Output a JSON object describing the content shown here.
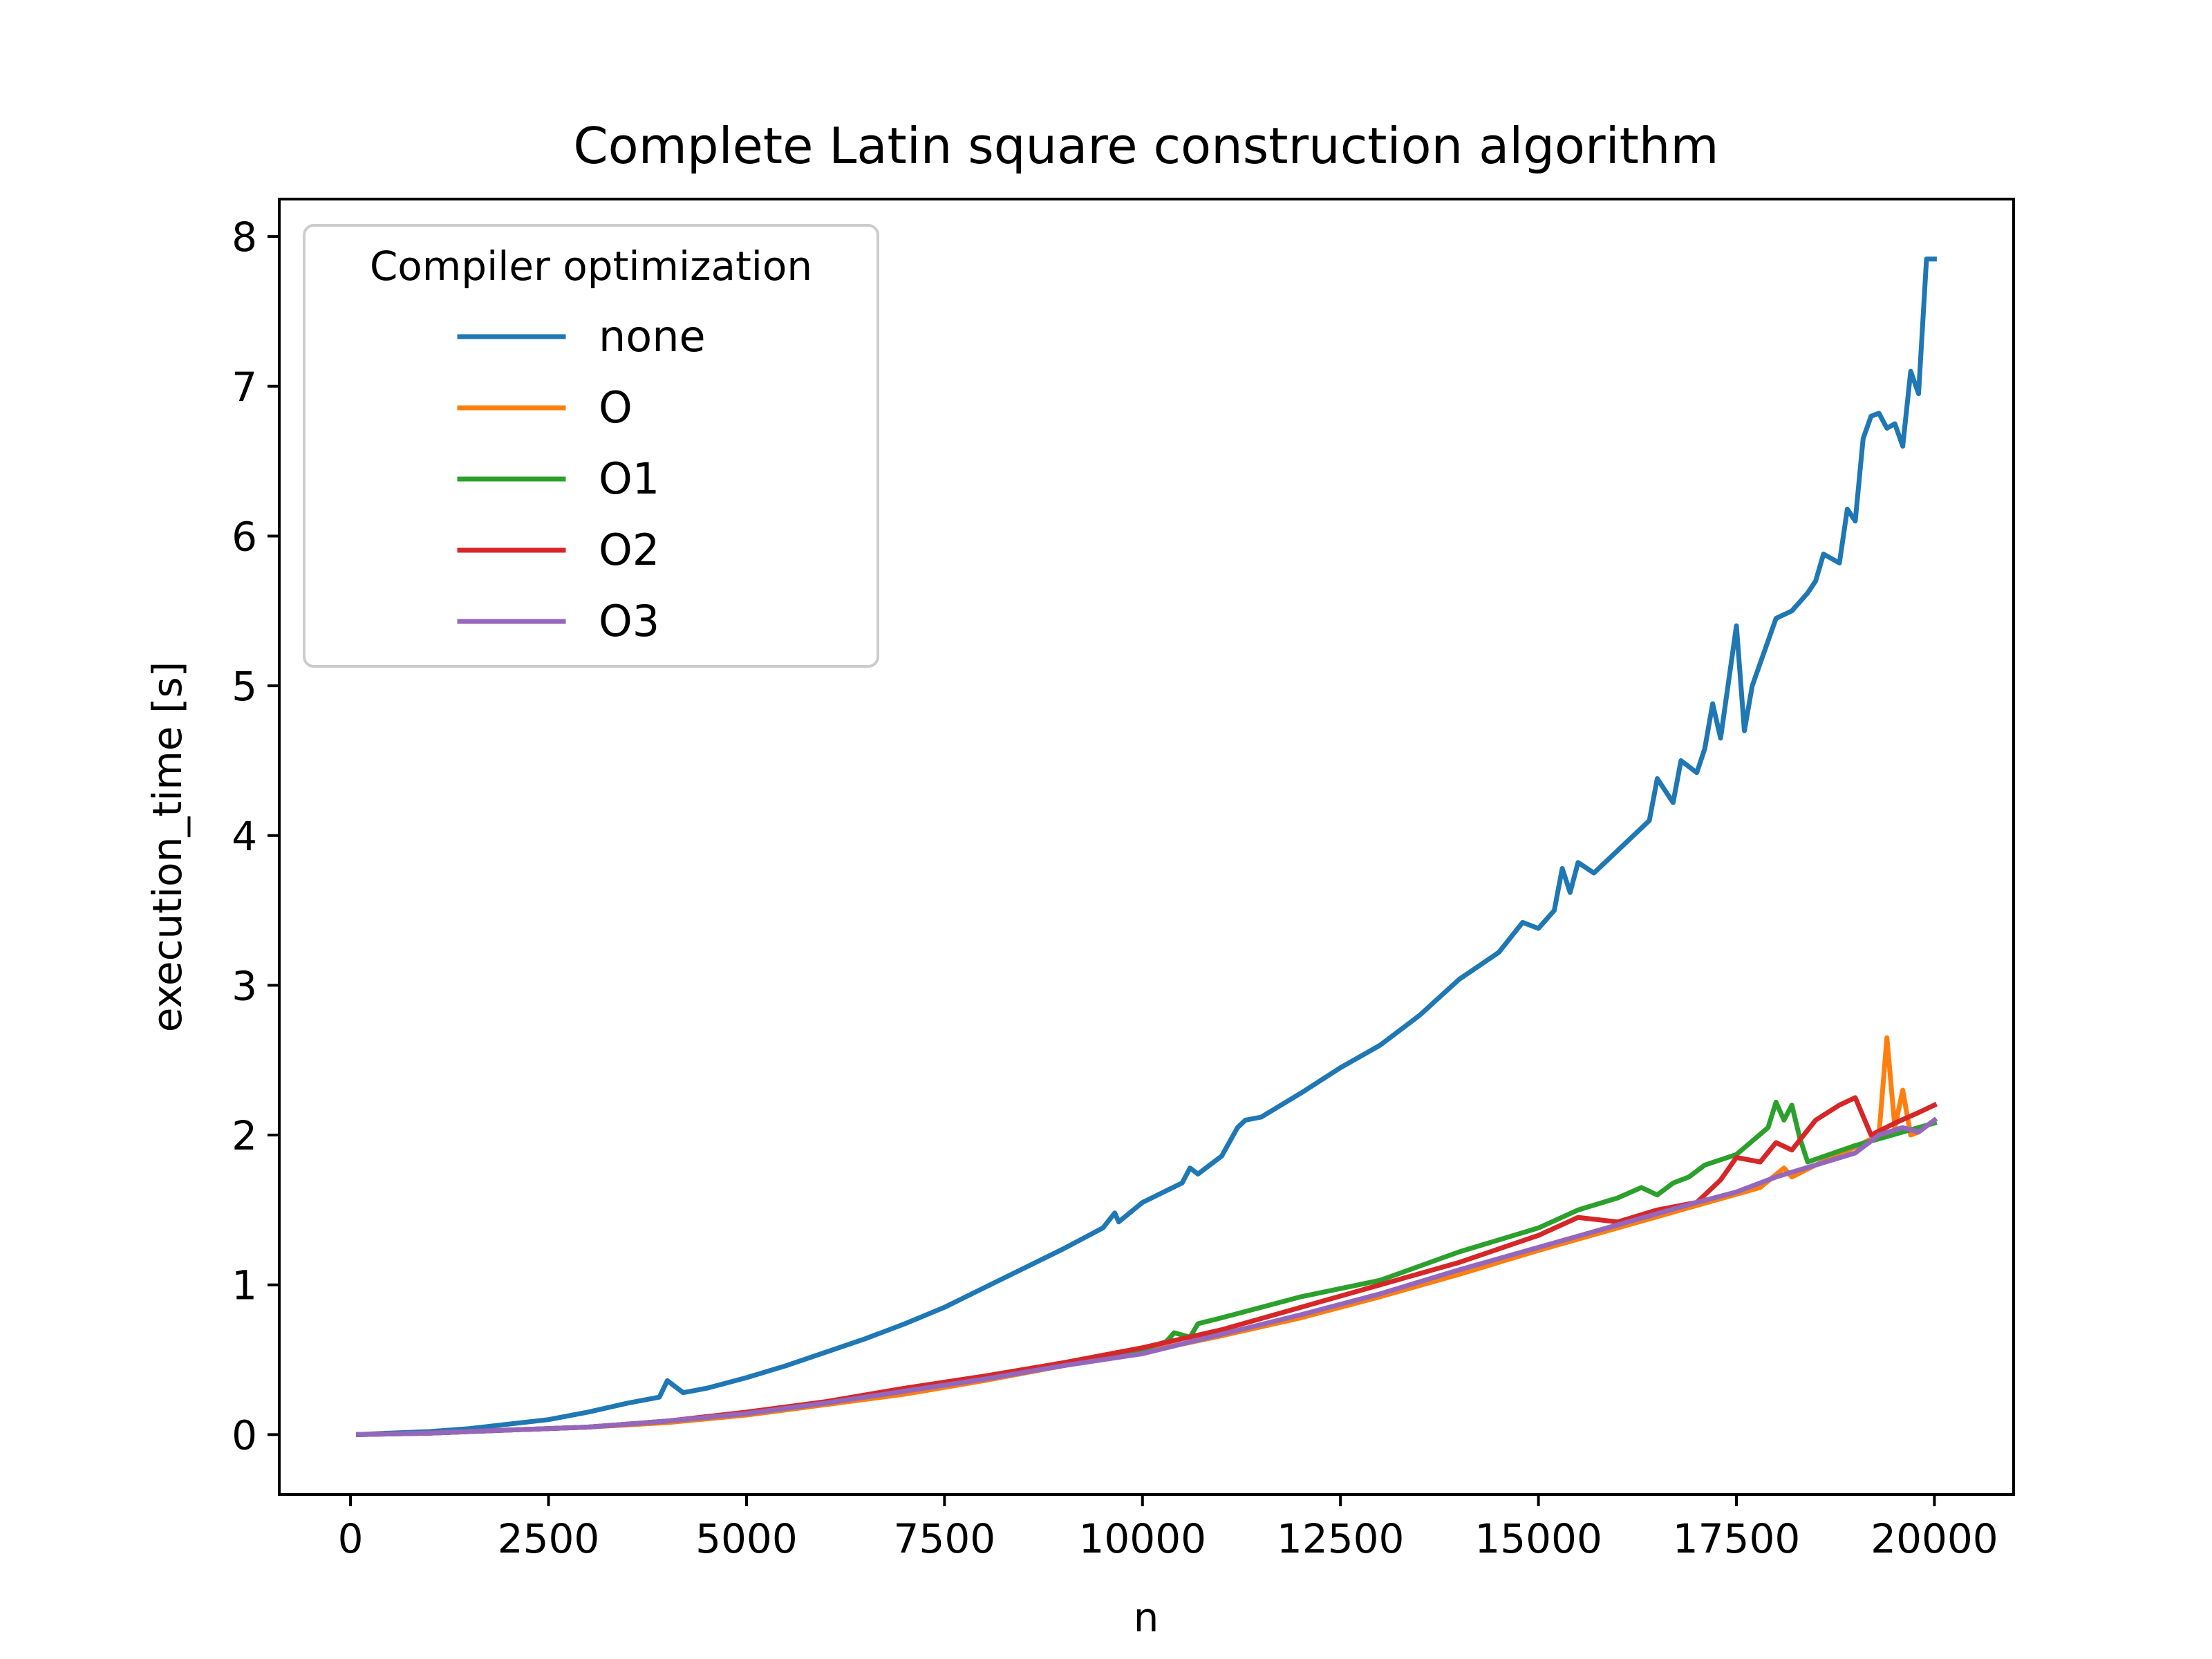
{
  "chart_data": {
    "type": "line",
    "title": "Complete Latin square construction algorithm",
    "xlabel": "n",
    "ylabel": "execution_time [s]",
    "xlim": [
      -900,
      21000
    ],
    "ylim": [
      -0.4,
      8.25
    ],
    "xticks": [
      0,
      2500,
      5000,
      7500,
      10000,
      12500,
      15000,
      17500,
      20000
    ],
    "yticks": [
      0,
      1,
      2,
      3,
      4,
      5,
      6,
      7,
      8
    ],
    "grid": false,
    "legend": {
      "title": "Compiler optimization",
      "placement": "upper-left"
    },
    "series": [
      {
        "name": "none",
        "color": "#1f77b4",
        "x": [
          100,
          500,
          1000,
          1500,
          2000,
          2500,
          3000,
          3500,
          3900,
          4000,
          4200,
          4500,
          5000,
          5500,
          6000,
          6500,
          7000,
          7500,
          8000,
          8500,
          9000,
          9500,
          9650,
          9700,
          10000,
          10500,
          10600,
          10700,
          11000,
          11200,
          11300,
          11500,
          12000,
          12500,
          13000,
          13500,
          14000,
          14500,
          14800,
          15000,
          15200,
          15300,
          15400,
          15500,
          15700,
          16000,
          16400,
          16500,
          16700,
          16800,
          17000,
          17100,
          17200,
          17300,
          17500,
          17600,
          17700,
          18000,
          18200,
          18400,
          18500,
          18600,
          18800,
          18900,
          19000,
          19100,
          19200,
          19300,
          19400,
          19500,
          19600,
          19700,
          19800,
          19900,
          20000
        ],
        "values": [
          0.0,
          0.01,
          0.02,
          0.04,
          0.07,
          0.1,
          0.15,
          0.21,
          0.25,
          0.36,
          0.28,
          0.31,
          0.38,
          0.46,
          0.55,
          0.64,
          0.74,
          0.85,
          0.98,
          1.11,
          1.24,
          1.38,
          1.48,
          1.42,
          1.55,
          1.68,
          1.78,
          1.74,
          1.86,
          2.05,
          2.1,
          2.12,
          2.28,
          2.45,
          2.6,
          2.8,
          3.04,
          3.22,
          3.42,
          3.38,
          3.5,
          3.78,
          3.62,
          3.82,
          3.75,
          3.9,
          4.1,
          4.38,
          4.22,
          4.5,
          4.42,
          4.58,
          4.88,
          4.65,
          5.4,
          4.7,
          5.0,
          5.45,
          5.5,
          5.62,
          5.7,
          5.88,
          5.82,
          6.18,
          6.1,
          6.65,
          6.8,
          6.82,
          6.72,
          6.75,
          6.6,
          7.1,
          6.95,
          7.85,
          7.85
        ]
      },
      {
        "name": "O",
        "color": "#ff7f0e",
        "x": [
          100,
          1000,
          2000,
          3000,
          4000,
          5000,
          6000,
          7000,
          8000,
          9000,
          10000,
          11000,
          12000,
          13000,
          14000,
          15000,
          16000,
          17000,
          17800,
          18100,
          18200,
          18500,
          19000,
          19300,
          19400,
          19500,
          19600,
          19700,
          19800,
          20000
        ],
        "values": [
          0.0,
          0.01,
          0.03,
          0.05,
          0.08,
          0.13,
          0.2,
          0.27,
          0.36,
          0.46,
          0.55,
          0.66,
          0.78,
          0.92,
          1.07,
          1.23,
          1.38,
          1.53,
          1.65,
          1.78,
          1.72,
          1.8,
          1.92,
          2.0,
          2.65,
          2.05,
          2.3,
          2.0,
          2.02,
          2.1
        ]
      },
      {
        "name": "O1",
        "color": "#2ca02c",
        "x": [
          100,
          1000,
          2000,
          3000,
          4000,
          5000,
          6000,
          7000,
          8000,
          9000,
          10000,
          10300,
          10400,
          10600,
          10700,
          11000,
          12000,
          13000,
          14000,
          15000,
          15500,
          16000,
          16300,
          16500,
          16700,
          16900,
          17100,
          17500,
          17900,
          18000,
          18100,
          18200,
          18300,
          18400,
          19000,
          20000
        ],
        "values": [
          0.0,
          0.01,
          0.03,
          0.05,
          0.09,
          0.14,
          0.21,
          0.3,
          0.38,
          0.48,
          0.57,
          0.62,
          0.68,
          0.65,
          0.74,
          0.78,
          0.92,
          1.03,
          1.22,
          1.38,
          1.5,
          1.58,
          1.65,
          1.6,
          1.68,
          1.72,
          1.8,
          1.87,
          2.05,
          2.22,
          2.1,
          2.2,
          1.98,
          1.82,
          1.93,
          2.08
        ]
      },
      {
        "name": "O2",
        "color": "#d62728",
        "x": [
          100,
          1000,
          2000,
          3000,
          4000,
          5000,
          6000,
          7000,
          8000,
          9000,
          10000,
          11000,
          12000,
          13000,
          14000,
          15000,
          15500,
          16000,
          16500,
          17000,
          17300,
          17500,
          17800,
          18000,
          18200,
          18500,
          18800,
          19000,
          19200,
          19500,
          19800,
          20000
        ],
        "values": [
          0.0,
          0.01,
          0.03,
          0.05,
          0.09,
          0.15,
          0.22,
          0.31,
          0.39,
          0.48,
          0.58,
          0.7,
          0.85,
          1.0,
          1.15,
          1.33,
          1.45,
          1.42,
          1.5,
          1.55,
          1.7,
          1.85,
          1.82,
          1.95,
          1.9,
          2.1,
          2.2,
          2.25,
          2.0,
          2.08,
          2.15,
          2.2
        ]
      },
      {
        "name": "O3",
        "color": "#9467bd",
        "x": [
          100,
          1000,
          2000,
          3000,
          4000,
          5000,
          6000,
          7000,
          8000,
          9000,
          10000,
          11000,
          12000,
          13000,
          14000,
          15000,
          16000,
          17000,
          17500,
          18000,
          18500,
          19000,
          19300,
          19600,
          19800,
          20000
        ],
        "values": [
          0.0,
          0.01,
          0.03,
          0.05,
          0.09,
          0.14,
          0.21,
          0.29,
          0.37,
          0.46,
          0.54,
          0.67,
          0.8,
          0.94,
          1.1,
          1.25,
          1.4,
          1.55,
          1.62,
          1.72,
          1.8,
          1.88,
          2.0,
          2.05,
          2.02,
          2.1
        ]
      }
    ]
  }
}
